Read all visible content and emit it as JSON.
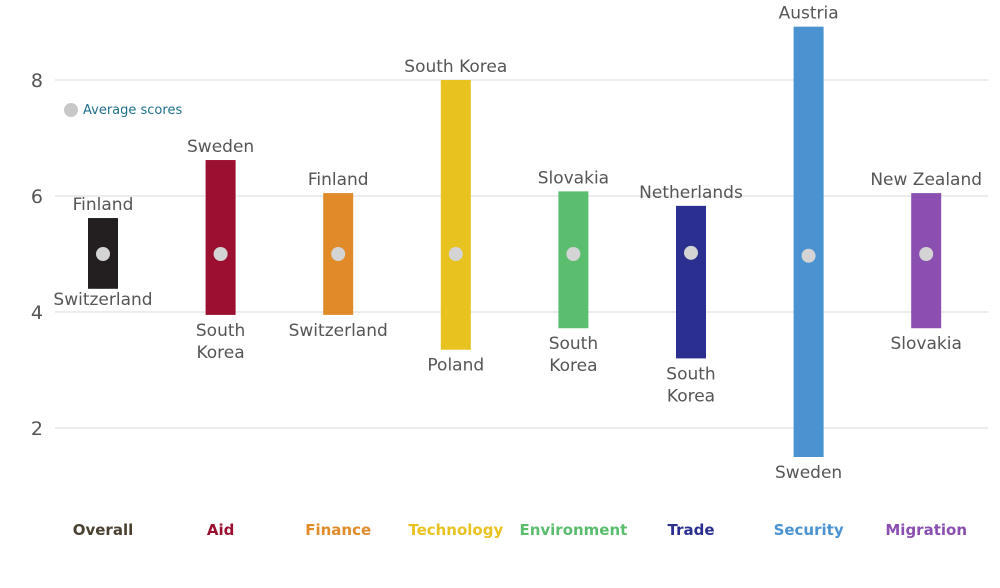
{
  "chart_data": {
    "type": "range-bar",
    "ylim": [
      1,
      9
    ],
    "yticks": [
      2,
      4,
      6,
      8
    ],
    "grid": true,
    "legend": {
      "label": "Average scores",
      "marker_color": "#c8c8c8",
      "text_color": "#1f6f8b",
      "placement": "top-left"
    },
    "average_marker_color": "#d4d4d4",
    "categories": [
      {
        "name": "Overall",
        "color": "#231f20",
        "low": 4.4,
        "high": 5.62,
        "avg": 5.0,
        "high_label": [
          "Finland"
        ],
        "low_label": [
          "Switzerland"
        ],
        "low_label_pos": "inside"
      },
      {
        "name": "Aid",
        "color": "#9b1030",
        "low": 3.95,
        "high": 6.62,
        "avg": 5.0,
        "high_label": [
          "Sweden"
        ],
        "low_label": [
          "South",
          "Korea"
        ]
      },
      {
        "name": "Finance",
        "color": "#e08a2a",
        "low": 3.95,
        "high": 6.05,
        "avg": 5.0,
        "high_label": [
          "Finland"
        ],
        "low_label": [
          "Switzerland"
        ]
      },
      {
        "name": "Technology",
        "color": "#e8c21f",
        "low": 3.35,
        "high": 8.0,
        "avg": 5.0,
        "high_label": [
          "South Korea"
        ],
        "low_label": [
          "Poland"
        ]
      },
      {
        "name": "Environment",
        "color": "#5bbd6e",
        "low": 3.72,
        "high": 6.08,
        "avg": 5.0,
        "high_label": [
          "Slovakia"
        ],
        "low_label": [
          "South",
          "Korea"
        ]
      },
      {
        "name": "Trade",
        "color": "#2b2f8f",
        "low": 3.2,
        "high": 5.83,
        "avg": 5.02,
        "high_label": [
          "Netherlands"
        ],
        "low_label": [
          "South",
          "Korea"
        ]
      },
      {
        "name": "Security",
        "color": "#4a93d0",
        "low": 1.5,
        "high": 8.92,
        "avg": 4.97,
        "high_label": [
          "Austria"
        ],
        "low_label": [
          "Sweden"
        ]
      },
      {
        "name": "Migration",
        "color": "#8a4fb0",
        "low": 3.72,
        "high": 6.05,
        "avg": 5.0,
        "high_label": [
          "New Zealand"
        ],
        "low_label": [
          "Slovakia"
        ]
      }
    ]
  }
}
